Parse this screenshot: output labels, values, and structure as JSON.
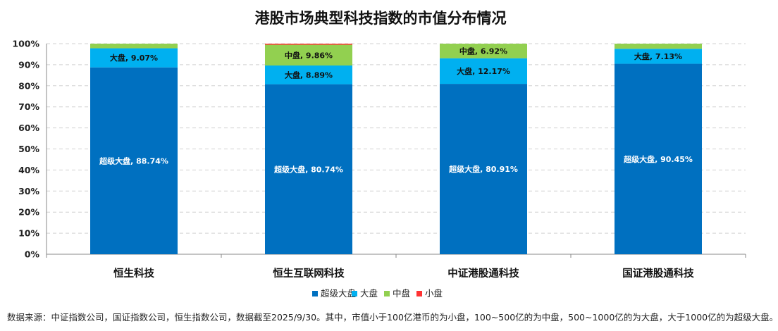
{
  "chart_data": {
    "type": "bar",
    "stacked": true,
    "title": "港股市场典型科技指数的市值分布情况",
    "categories": [
      "恒生科技",
      "恒生互联网科技",
      "中证港股通科技",
      "国证港股通科技"
    ],
    "ylim": [
      0,
      100
    ],
    "yticks": [
      "0%",
      "10%",
      "20%",
      "30%",
      "40%",
      "50%",
      "60%",
      "70%",
      "80%",
      "90%",
      "100%"
    ],
    "grid": true,
    "legend_position": "bottom",
    "series": [
      {
        "name": "超级大盘",
        "color": "#0070c0",
        "values": [
          88.74,
          80.74,
          80.91,
          90.45
        ],
        "labels": [
          "超级大盘, 88.74%",
          "超级大盘, 80.74%",
          "超级大盘, 80.91%",
          "超级大盘, 90.45%"
        ]
      },
      {
        "name": "大盘",
        "color": "#00b0f0",
        "values": [
          9.07,
          8.89,
          12.17,
          7.13
        ],
        "labels": [
          "大盘, 9.07%",
          "大盘, 8.89%",
          "大盘, 12.17%",
          "大盘, 7.13%"
        ]
      },
      {
        "name": "中盘",
        "color": "#92d050",
        "values": [
          2.19,
          9.86,
          6.92,
          2.42
        ],
        "labels": [
          "",
          "中盘, 9.86%",
          "中盘, 6.92%",
          ""
        ]
      },
      {
        "name": "小盘",
        "color": "#ff3333",
        "values": [
          0,
          0.51,
          0,
          0
        ],
        "labels": [
          "",
          "",
          "",
          ""
        ]
      }
    ],
    "note": "数据来源：中证指数公司，国证指数公司，恒生指数公司，数据截至2025/9/30。其中，市值小于100亿港币的为小盘，100~500亿的为中盘，500~1000亿的为大盘，大于1000亿的为超级大盘。"
  }
}
